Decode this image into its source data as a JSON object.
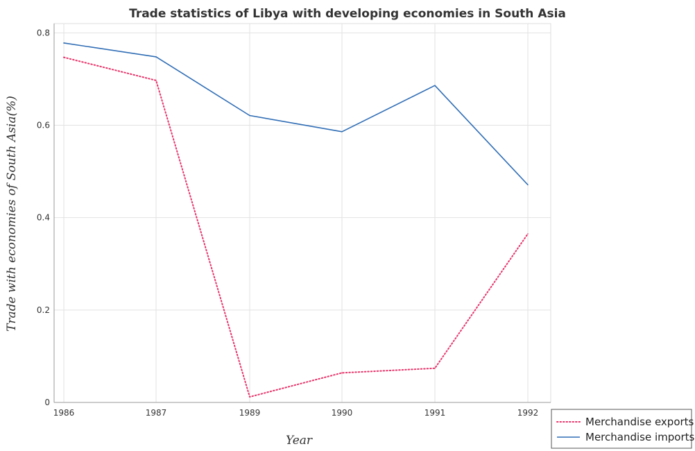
{
  "chart_data": {
    "type": "line",
    "title": "Trade statistics of Libya with developing economies in South Asia",
    "xlabel": "Year",
    "ylabel": "Trade with economies of South Asia(%)",
    "categories": [
      "1986",
      "1987",
      "1989",
      "1990",
      "1991",
      "1992"
    ],
    "ylim": [
      0,
      0.82
    ],
    "yticks": [
      "0",
      "0.2",
      "0.4",
      "0.6",
      "0.8"
    ],
    "ytick_values": [
      0,
      0.2,
      0.4,
      0.6,
      0.8
    ],
    "grid": true,
    "legend_position": "bottom-right",
    "series": [
      {
        "name": "Merchandise exports",
        "color": "#e8336b",
        "style": "dotted",
        "values": [
          0.747,
          0.697,
          0.012,
          0.064,
          0.074,
          0.365
        ]
      },
      {
        "name": "Merchandise imports",
        "color": "#2f6db5",
        "style": "solid",
        "values": [
          0.778,
          0.748,
          0.621,
          0.586,
          0.686,
          0.471
        ]
      }
    ]
  }
}
